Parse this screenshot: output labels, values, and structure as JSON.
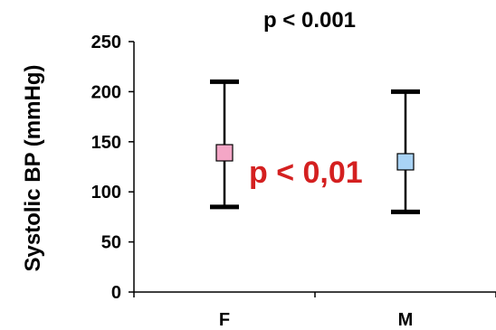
{
  "chart_data": {
    "type": "scatter",
    "title": "p < 0.001",
    "xlabel": "",
    "ylabel": "Systolic BP (mmHg)",
    "ylim": [
      0,
      250
    ],
    "yticks": [
      0,
      50,
      100,
      150,
      200,
      250
    ],
    "grid": false,
    "categories": [
      "F",
      "M"
    ],
    "points": [
      {
        "category": "F",
        "mean": 139,
        "low": 85,
        "high": 210,
        "color": "#f4a6c6"
      },
      {
        "category": "M",
        "mean": 130,
        "low": 80,
        "high": 200,
        "color": "#a9d3f5"
      }
    ],
    "annotation": {
      "text": "p < 0,01",
      "color": "#d42020"
    }
  }
}
